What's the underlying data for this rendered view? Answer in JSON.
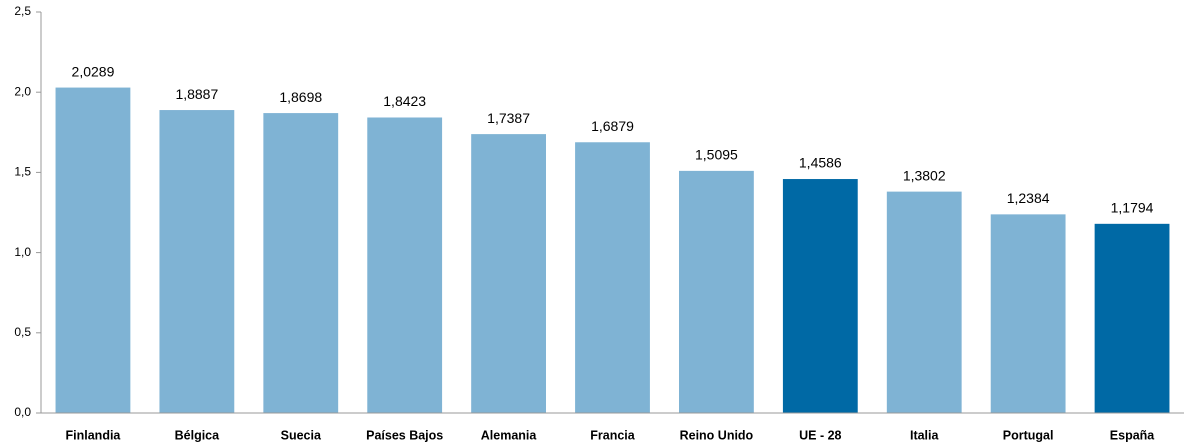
{
  "chart_data": {
    "type": "bar",
    "categories": [
      "Finlandia",
      "Bélgica",
      "Suecia",
      "Países Bajos",
      "Alemania",
      "Francia",
      "Reino Unido",
      "UE - 28",
      "Italia",
      "Portugal",
      "España"
    ],
    "values": [
      2.0289,
      1.8887,
      1.8698,
      1.8423,
      1.7387,
      1.6879,
      1.5095,
      1.4586,
      1.3802,
      1.2384,
      1.1794
    ],
    "value_labels": [
      "2,0289",
      "1,8887",
      "1,8698",
      "1,8423",
      "1,7387",
      "1,6879",
      "1,5095",
      "1,4586",
      "1,3802",
      "1,2384",
      "1,1794"
    ],
    "colors": [
      "#7fb3d4",
      "#7fb3d4",
      "#7fb3d4",
      "#7fb3d4",
      "#7fb3d4",
      "#7fb3d4",
      "#7fb3d4",
      "#0069a5",
      "#7fb3d4",
      "#7fb3d4",
      "#0069a5"
    ],
    "ylim": [
      0,
      2.5
    ],
    "yticks": [
      {
        "value": 0,
        "label": "0,0"
      },
      {
        "value": 0.5,
        "label": "0,5"
      },
      {
        "value": 1,
        "label": "1,0"
      },
      {
        "value": 1.5,
        "label": "1,5"
      },
      {
        "value": 2,
        "label": "2,0"
      },
      {
        "value": 2.5,
        "label": "2,5"
      }
    ],
    "grid": false
  }
}
